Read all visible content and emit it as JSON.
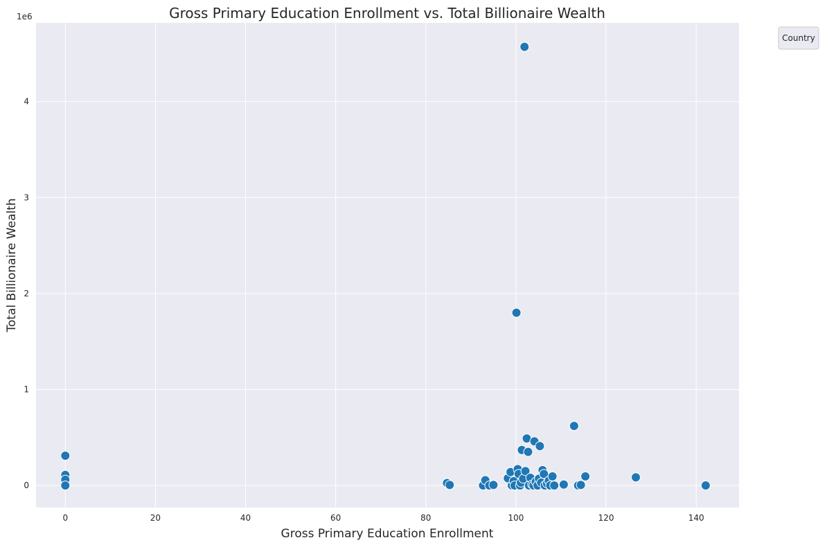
{
  "chart_data": {
    "type": "scatter",
    "title": "Gross Primary Education Enrollment vs. Total Billionaire Wealth",
    "xlabel": "Gross Primary Education Enrollment",
    "ylabel": "Total Billionaire Wealth",
    "y_offset_label": "1e6",
    "y_scale_factor": 1000000,
    "xlim": [
      -6.5,
      149.5
    ],
    "ylim": [
      -230000,
      4820000
    ],
    "x_ticks": [
      0,
      20,
      40,
      60,
      80,
      100,
      120,
      140
    ],
    "y_ticks": [
      0,
      1,
      2,
      3,
      4
    ],
    "grid": true,
    "legend": {
      "title": "Country",
      "placement": "outside-top-right",
      "entries": []
    },
    "marker_color": "#1f77b4",
    "background_color": "#eaeaf2",
    "points": [
      {
        "x": 0,
        "y": 310000
      },
      {
        "x": 0,
        "y": 110000
      },
      {
        "x": 0,
        "y": 60000
      },
      {
        "x": 0,
        "y": 0
      },
      {
        "x": 84.7,
        "y": 25000
      },
      {
        "x": 85.3,
        "y": 5000
      },
      {
        "x": 92.7,
        "y": 0
      },
      {
        "x": 93.2,
        "y": 55000
      },
      {
        "x": 94.1,
        "y": 0
      },
      {
        "x": 95.0,
        "y": 5000
      },
      {
        "x": 98.2,
        "y": 75000
      },
      {
        "x": 98.8,
        "y": 140000
      },
      {
        "x": 99.1,
        "y": 0
      },
      {
        "x": 99.5,
        "y": 45000
      },
      {
        "x": 99.7,
        "y": 0
      },
      {
        "x": 100.1,
        "y": 1800000
      },
      {
        "x": 100.4,
        "y": 170000
      },
      {
        "x": 100.6,
        "y": 120000
      },
      {
        "x": 100.9,
        "y": 0
      },
      {
        "x": 101.1,
        "y": 30000
      },
      {
        "x": 101.3,
        "y": 370000
      },
      {
        "x": 101.6,
        "y": 70000
      },
      {
        "x": 101.9,
        "y": 4570000
      },
      {
        "x": 102.1,
        "y": 150000
      },
      {
        "x": 102.4,
        "y": 490000
      },
      {
        "x": 102.7,
        "y": 350000
      },
      {
        "x": 102.9,
        "y": 0
      },
      {
        "x": 103.2,
        "y": 80000
      },
      {
        "x": 103.6,
        "y": 10000
      },
      {
        "x": 103.9,
        "y": 0
      },
      {
        "x": 104.1,
        "y": 460000
      },
      {
        "x": 104.4,
        "y": 40000
      },
      {
        "x": 104.8,
        "y": 0
      },
      {
        "x": 105.1,
        "y": 70000
      },
      {
        "x": 105.3,
        "y": 410000
      },
      {
        "x": 105.6,
        "y": 30000
      },
      {
        "x": 105.9,
        "y": 160000
      },
      {
        "x": 106.2,
        "y": 120000
      },
      {
        "x": 106.4,
        "y": 0
      },
      {
        "x": 106.9,
        "y": 20000
      },
      {
        "x": 107.3,
        "y": 50000
      },
      {
        "x": 107.6,
        "y": 0
      },
      {
        "x": 108.1,
        "y": 95000
      },
      {
        "x": 108.5,
        "y": 0
      },
      {
        "x": 110.6,
        "y": 10000
      },
      {
        "x": 112.9,
        "y": 620000
      },
      {
        "x": 113.8,
        "y": 0
      },
      {
        "x": 114.4,
        "y": 5000
      },
      {
        "x": 115.4,
        "y": 95000
      },
      {
        "x": 126.6,
        "y": 85000
      },
      {
        "x": 142.1,
        "y": 0
      }
    ]
  }
}
